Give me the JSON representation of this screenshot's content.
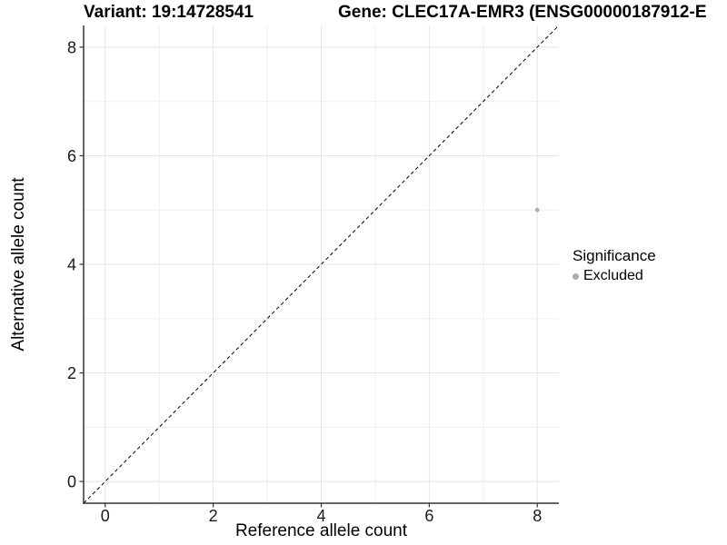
{
  "titles": {
    "variant": "Variant: 19:14728541",
    "gene": "Gene: CLEC17A-EMR3 (ENSG00000187912-E"
  },
  "chart_data": {
    "type": "scatter",
    "xlabel": "Reference allele count",
    "ylabel": "Alternative allele count",
    "xlim": [
      -0.4,
      8.4
    ],
    "ylim": [
      -0.4,
      8.4
    ],
    "x_ticks": [
      0,
      2,
      4,
      6,
      8
    ],
    "y_ticks": [
      0,
      2,
      4,
      6,
      8
    ],
    "x_minor_ticks": [
      1,
      3,
      5,
      7
    ],
    "y_minor_ticks": [
      1,
      3,
      5,
      7
    ],
    "grid": "on",
    "points": [
      {
        "x": 8,
        "y": 5,
        "series": "Excluded"
      }
    ],
    "identity_line": {
      "style": "dashed",
      "from": [
        -0.4,
        -0.4
      ],
      "to": [
        8.4,
        8.4
      ]
    },
    "legend": {
      "title": "Significance",
      "position": "right",
      "items": [
        {
          "label": "Excluded",
          "color": "#ACACAC"
        }
      ]
    }
  },
  "colors": {
    "point": "#ACACAC",
    "dashed_line": "#000000",
    "axis_line": "#333333",
    "tick_mark": "#333333",
    "tick_text": "#1A1A1A",
    "grid_major": "#E4E4E4",
    "grid_minor": "#EFEFEF",
    "background": "#FFFFFF"
  }
}
